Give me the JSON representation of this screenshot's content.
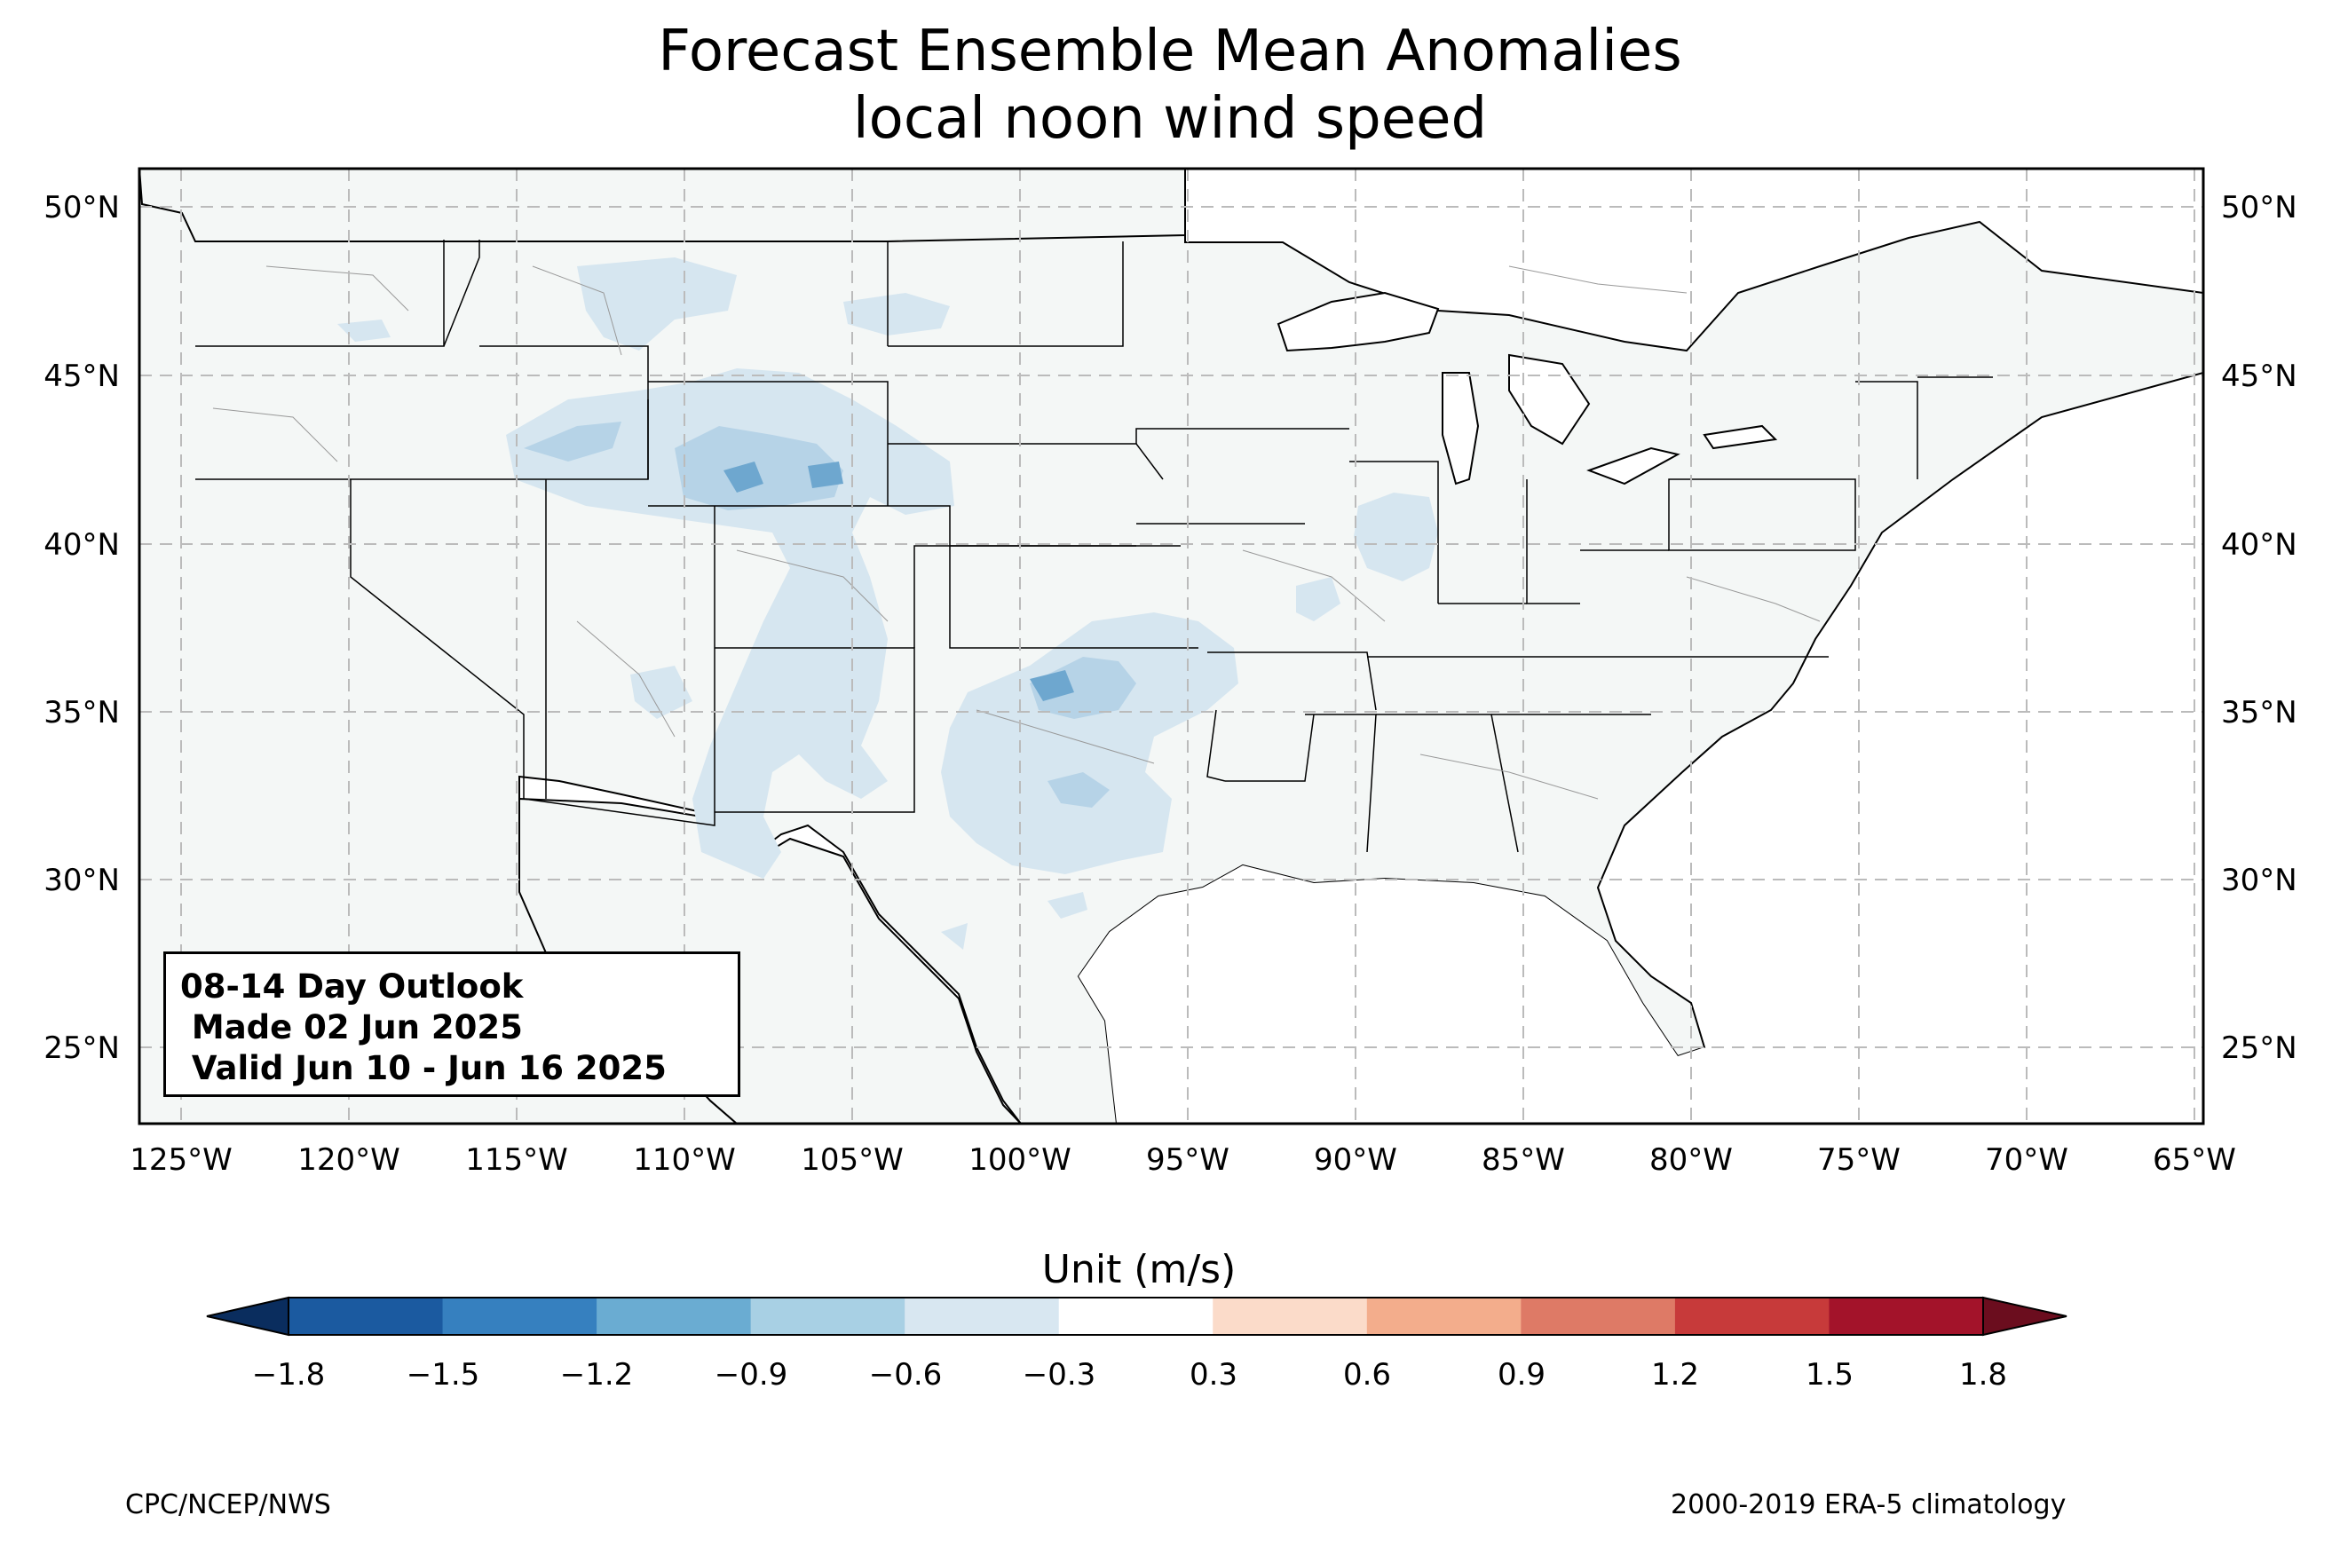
{
  "title": {
    "line1": "Forecast Ensemble Mean Anomalies",
    "line2": "local noon wind speed"
  },
  "outlook": {
    "line1": "08-14 Day Outlook",
    "line2": " Made 02 Jun 2025",
    "line3": " Valid Jun 10 - Jun 16 2025"
  },
  "axes": {
    "lon_labels": [
      "125°W",
      "120°W",
      "115°W",
      "110°W",
      "105°W",
      "100°W",
      "95°W",
      "90°W",
      "85°W",
      "80°W",
      "75°W",
      "70°W",
      "65°W"
    ],
    "lat_labels": [
      "50°N",
      "45°N",
      "40°N",
      "35°N",
      "30°N",
      "25°N"
    ],
    "lon_range": [
      -126.25,
      -64.75
    ],
    "lat_range": [
      22.8,
      51.2
    ],
    "grid": true
  },
  "colorbar": {
    "title": "Unit (m/s)",
    "ticks": [
      "−1.8",
      "−1.5",
      "−1.2",
      "−0.9",
      "−0.6",
      "−0.3",
      "0.3",
      "0.6",
      "0.9",
      "1.2",
      "1.5",
      "1.8"
    ],
    "colors": [
      "#1b5aa0",
      "#3680bf",
      "#6aacd2",
      "#a8d0e4",
      "#d8e7f1",
      "#ffffff",
      "#fbdbc9",
      "#f3ad8c",
      "#de7a66",
      "#c73a3a",
      "#a3132a"
    ],
    "under_color": "#0a2d5e",
    "over_color": "#6b0d1e"
  },
  "credits": {
    "left": "CPC/NCEP/NWS",
    "right": "2000-2019 ERA-5 climatology"
  },
  "colors": {
    "land": "#f4f7f6",
    "anomaly_light": "#d6e6f0",
    "anomaly_mid": "#b6d3e7",
    "anomaly_dark": "#6ea7cf"
  }
}
